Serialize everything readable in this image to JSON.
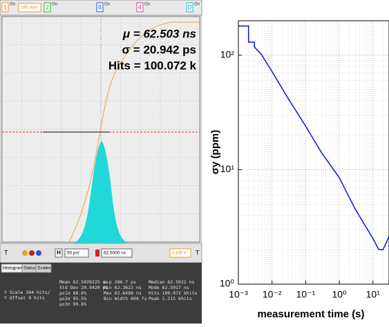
{
  "screen": {
    "channels": [
      {
        "number": "1",
        "state": "On",
        "scale": "100 mV/"
      },
      {
        "number": "2",
        "state": "On"
      },
      {
        "number": "8",
        "state": "On"
      },
      {
        "number": "4",
        "state": "On"
      },
      {
        "number": "D",
        "state": "On"
      }
    ],
    "overlay": [
      "μ = 62.503 ns",
      "σ = 20.942 ps",
      "Hits = 100.072 k"
    ],
    "toolbar": {
      "trigger": "T",
      "horizontal": "H",
      "timebase": "50 ps/",
      "position": "62.5000 ns",
      "level": "0.100 V",
      "trigger_end": "T"
    },
    "tabs": [
      "Histogram",
      "Status",
      "Scales"
    ],
    "stats": {
      "scale": [
        "Y Scale  384 hits/",
        "Y Offset  0 hits"
      ],
      "center": [
        "Mean  62.5028225 ns",
        "Std Dev  20.9420 ps",
        "μ±1σ  68.6%",
        "μ±2σ  95.5%",
        "μ±3σ  99.6%"
      ],
      "range": [
        "p-p  286.7 ps",
        "Min  62.3622 ns",
        "Max  62.6488 ns",
        "Bin Width  600 fs"
      ],
      "shape": [
        "Median  62.5022 ns",
        "Mode  62.5017 ns",
        "Hits  100.072 khits",
        "Peak  1.215 khits"
      ]
    }
  },
  "chart_data": {
    "type": "line",
    "xlabel": "measurement time (s)",
    "ylabel": "σy (ppm)",
    "log_x": true,
    "log_y": true,
    "grid": true,
    "minor_grid": true,
    "xlim": [
      0.001,
      30
    ],
    "ylim": [
      1,
      200
    ],
    "xticks": [
      {
        "value": 0.001,
        "label": "10⁻³"
      },
      {
        "value": 0.01,
        "label": "10⁻²"
      },
      {
        "value": 0.1,
        "label": "10⁻¹"
      },
      {
        "value": 1,
        "label": "10⁰"
      },
      {
        "value": 10,
        "label": "10¹"
      }
    ],
    "yticks": [
      {
        "value": 1,
        "label": "10⁰"
      },
      {
        "value": 10,
        "label": "10¹"
      },
      {
        "value": 100,
        "label": "10²"
      }
    ],
    "series": [
      {
        "color": "#0a14d8",
        "x": [
          0.001,
          0.002,
          0.002,
          0.003,
          0.003,
          0.005,
          0.01,
          0.03,
          0.1,
          0.3,
          1,
          3,
          10,
          15,
          20,
          30
        ],
        "values": [
          180,
          180,
          130,
          130,
          118,
          100,
          72,
          42,
          24,
          14,
          8.5,
          4.5,
          2.5,
          2,
          2,
          2.6
        ]
      }
    ]
  }
}
